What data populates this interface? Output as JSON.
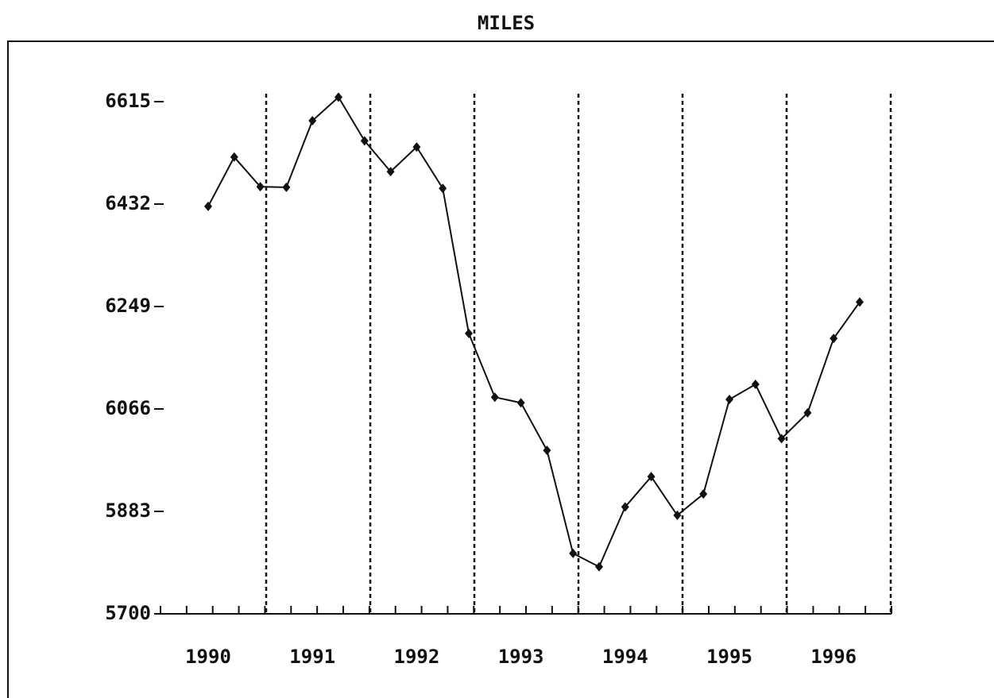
{
  "chart_data": {
    "type": "line",
    "title": "MILES",
    "categories": [
      "1990",
      null,
      null,
      null,
      "1991",
      null,
      null,
      null,
      "1992",
      null,
      null,
      null,
      "1993",
      null,
      null,
      null,
      "1994",
      null,
      null,
      null,
      "1995",
      null,
      null,
      null,
      "1996",
      null
    ],
    "values": [
      6428,
      6516,
      6463,
      6462,
      6581,
      6623,
      6545,
      6490,
      6534,
      6460,
      6201,
      6087,
      6077,
      5992,
      5808,
      5784,
      5891,
      5945,
      5876,
      5914,
      6083,
      6110,
      6013,
      6059,
      6192,
      6257
    ],
    "color": "#111111",
    "ylim": [
      5700,
      6615
    ],
    "yticks": [
      5700,
      5883,
      6066,
      6249,
      6432,
      6615
    ],
    "grid": false
  }
}
